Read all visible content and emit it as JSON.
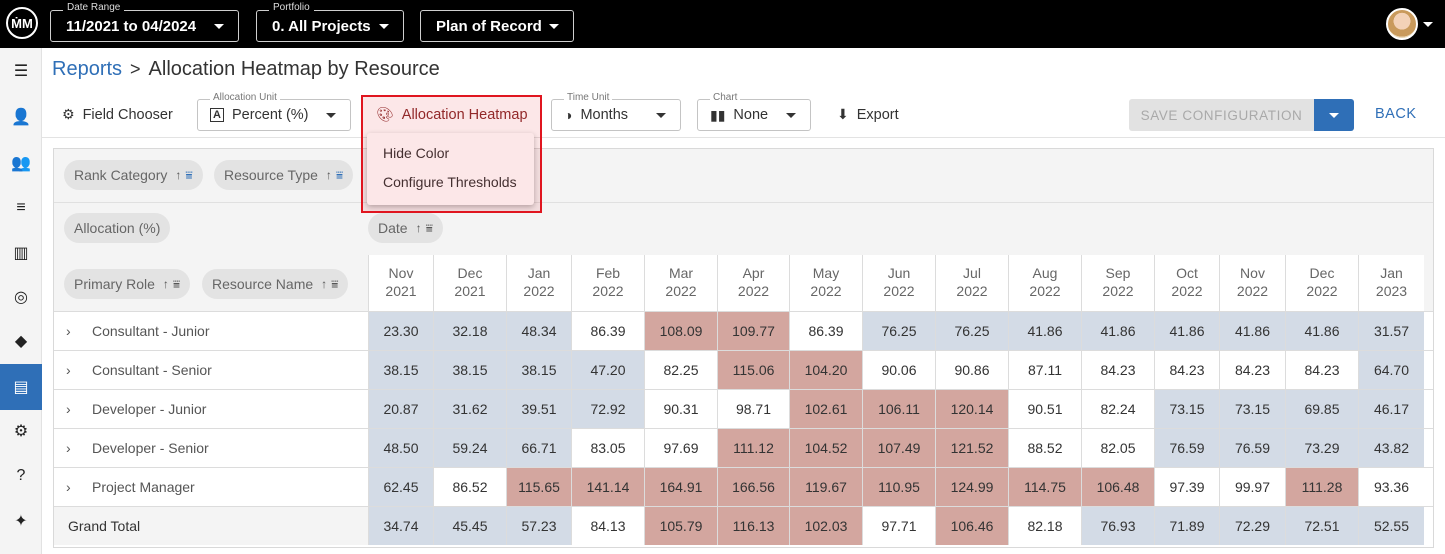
{
  "topbar": {
    "logo_text": "ṀM",
    "date_range": {
      "caption": "Date Range",
      "value": "11/2021 to 04/2024"
    },
    "portfolio": {
      "caption": "Portfolio",
      "value": "0. All Projects"
    },
    "plan": {
      "value": "Plan of Record"
    }
  },
  "sidebar": {
    "items": [
      {
        "icon": "menu-collapse-icon",
        "glyph": "☰"
      },
      {
        "icon": "user-list-icon",
        "glyph": "👤"
      },
      {
        "icon": "group-icon",
        "glyph": "👥"
      },
      {
        "icon": "list-icon",
        "glyph": "≡"
      },
      {
        "icon": "columns-icon",
        "glyph": "▥"
      },
      {
        "icon": "target-icon",
        "glyph": "◎"
      },
      {
        "icon": "direction-sign-icon",
        "glyph": "◆"
      },
      {
        "icon": "document-icon",
        "glyph": "▤"
      },
      {
        "icon": "gear-icon",
        "glyph": "⚙"
      },
      {
        "icon": "help-icon",
        "glyph": "?"
      },
      {
        "icon": "compass-icon",
        "glyph": "✦"
      }
    ]
  },
  "header": {
    "breadcrumb_link": "Reports",
    "separator": ">",
    "title": "Allocation Heatmap by Resource"
  },
  "toolbar": {
    "field_chooser": "Field Chooser",
    "allocation_unit": {
      "caption": "Allocation Unit",
      "value": "Percent (%)"
    },
    "heatmap_button": "Allocation Heatmap",
    "time_unit": {
      "caption": "Time Unit",
      "value": "Months"
    },
    "chart": {
      "caption": "Chart",
      "value": "None"
    },
    "export": "Export",
    "save": "SAVE CONFIGURATION",
    "back": "BACK"
  },
  "heatmap_menu": {
    "items": [
      "Hide Color",
      "Configure Thresholds"
    ]
  },
  "pivot": {
    "filter_fields": [
      "Rank Category",
      "Resource Type"
    ],
    "data_field": "Allocation (%)",
    "column_field": "Date",
    "row_fields": [
      "Primary Role",
      "Resource Name"
    ],
    "columns": [
      [
        "Nov",
        "2021"
      ],
      [
        "Dec",
        "2021"
      ],
      [
        "Jan",
        "2022"
      ],
      [
        "Feb",
        "2022"
      ],
      [
        "Mar",
        "2022"
      ],
      [
        "Apr",
        "2022"
      ],
      [
        "May",
        "2022"
      ],
      [
        "Jun",
        "2022"
      ],
      [
        "Jul",
        "2022"
      ],
      [
        "Aug",
        "2022"
      ],
      [
        "Sep",
        "2022"
      ],
      [
        "Oct",
        "2022"
      ],
      [
        "Nov",
        "2022"
      ],
      [
        "Dec",
        "2022"
      ],
      [
        "Jan",
        "2023"
      ]
    ],
    "rows": [
      {
        "label": "Consultant - Junior",
        "values": [
          "23.30",
          "32.18",
          "48.34",
          "86.39",
          "108.09",
          "109.77",
          "86.39",
          "76.25",
          "76.25",
          "41.86",
          "41.86",
          "41.86",
          "41.86",
          "41.86",
          "31.57"
        ]
      },
      {
        "label": "Consultant - Senior",
        "values": [
          "38.15",
          "38.15",
          "38.15",
          "47.20",
          "82.25",
          "115.06",
          "104.20",
          "90.06",
          "90.86",
          "87.11",
          "84.23",
          "84.23",
          "84.23",
          "84.23",
          "64.70"
        ]
      },
      {
        "label": "Developer - Junior",
        "values": [
          "20.87",
          "31.62",
          "39.51",
          "72.92",
          "90.31",
          "98.71",
          "102.61",
          "106.11",
          "120.14",
          "90.51",
          "82.24",
          "73.15",
          "73.15",
          "69.85",
          "46.17"
        ]
      },
      {
        "label": "Developer - Senior",
        "values": [
          "48.50",
          "59.24",
          "66.71",
          "83.05",
          "97.69",
          "111.12",
          "104.52",
          "107.49",
          "121.52",
          "88.52",
          "82.05",
          "76.59",
          "76.59",
          "73.29",
          "43.82"
        ]
      },
      {
        "label": "Project Manager",
        "values": [
          "62.45",
          "86.52",
          "115.65",
          "141.14",
          "164.91",
          "166.56",
          "119.67",
          "110.95",
          "124.99",
          "114.75",
          "106.48",
          "97.39",
          "99.97",
          "111.28",
          "93.36"
        ]
      }
    ],
    "total": {
      "label": "Grand Total",
      "values": [
        "34.74",
        "45.45",
        "57.23",
        "84.13",
        "105.79",
        "116.13",
        "102.03",
        "97.71",
        "106.46",
        "82.18",
        "76.93",
        "71.89",
        "72.29",
        "72.51",
        "52.55"
      ]
    }
  },
  "colors": {
    "under": "#d3dbe6",
    "normal": "#ffffff",
    "over": "#d3a69f",
    "accent": "#2f6fb7",
    "highlight": "#e0151f"
  }
}
